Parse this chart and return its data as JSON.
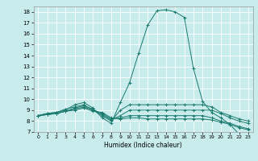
{
  "title": "",
  "xlabel": "Humidex (Indice chaleur)",
  "bg_color": "#c8ecec",
  "grid_color": "#ffffff",
  "line_color": "#1a7a6e",
  "xlim": [
    -0.5,
    23.5
  ],
  "ylim": [
    7,
    18.5
  ],
  "xticks": [
    0,
    1,
    2,
    3,
    4,
    5,
    6,
    7,
    8,
    9,
    10,
    11,
    12,
    13,
    14,
    15,
    16,
    17,
    18,
    19,
    20,
    21,
    22,
    23
  ],
  "yticks": [
    7,
    8,
    9,
    10,
    11,
    12,
    13,
    14,
    15,
    16,
    17,
    18
  ],
  "lines": [
    {
      "x": [
        0,
        1,
        2,
        3,
        4,
        5,
        6,
        7,
        8,
        9,
        10,
        11,
        12,
        13,
        14,
        15,
        16,
        17,
        18,
        19,
        20,
        21,
        22,
        23
      ],
      "y": [
        8.5,
        8.7,
        8.8,
        9.0,
        9.5,
        9.7,
        9.2,
        8.3,
        7.8,
        9.7,
        11.5,
        14.2,
        16.8,
        18.1,
        18.2,
        18.0,
        17.5,
        12.8,
        9.8,
        8.8,
        8.3,
        7.7,
        6.8,
        6.7
      ]
    },
    {
      "x": [
        0,
        1,
        2,
        3,
        4,
        5,
        6,
        7,
        8,
        9,
        10,
        11,
        12,
        13,
        14,
        15,
        16,
        17,
        18,
        19,
        20,
        21,
        22,
        23
      ],
      "y": [
        8.5,
        8.7,
        8.8,
        9.1,
        9.3,
        9.5,
        9.0,
        8.5,
        8.0,
        9.0,
        9.5,
        9.5,
        9.5,
        9.5,
        9.5,
        9.5,
        9.5,
        9.5,
        9.5,
        9.3,
        8.8,
        8.5,
        8.2,
        8.0
      ]
    },
    {
      "x": [
        0,
        1,
        2,
        3,
        4,
        5,
        6,
        7,
        8,
        9,
        10,
        11,
        12,
        13,
        14,
        15,
        16,
        17,
        18,
        19,
        20,
        21,
        22,
        23
      ],
      "y": [
        8.5,
        8.6,
        8.7,
        8.9,
        9.2,
        9.4,
        9.1,
        8.6,
        8.1,
        8.5,
        9.0,
        9.0,
        9.0,
        9.0,
        9.0,
        9.0,
        9.0,
        9.0,
        9.0,
        9.0,
        8.7,
        8.3,
        8.0,
        7.8
      ]
    },
    {
      "x": [
        0,
        1,
        2,
        3,
        4,
        5,
        6,
        7,
        8,
        9,
        10,
        11,
        12,
        13,
        14,
        15,
        16,
        17,
        18,
        19,
        20,
        21,
        22,
        23
      ],
      "y": [
        8.5,
        8.6,
        8.7,
        8.9,
        9.1,
        9.3,
        9.0,
        8.7,
        8.2,
        8.3,
        8.5,
        8.5,
        8.5,
        8.5,
        8.5,
        8.5,
        8.5,
        8.5,
        8.5,
        8.3,
        8.0,
        7.8,
        7.5,
        7.3
      ]
    },
    {
      "x": [
        0,
        1,
        2,
        3,
        4,
        5,
        6,
        7,
        8,
        9,
        10,
        11,
        12,
        13,
        14,
        15,
        16,
        17,
        18,
        19,
        20,
        21,
        22,
        23
      ],
      "y": [
        8.5,
        8.6,
        8.7,
        8.9,
        9.0,
        9.2,
        8.9,
        8.8,
        8.3,
        8.2,
        8.3,
        8.3,
        8.2,
        8.2,
        8.2,
        8.2,
        8.2,
        8.2,
        8.2,
        8.1,
        7.9,
        7.7,
        7.4,
        7.2
      ]
    }
  ]
}
